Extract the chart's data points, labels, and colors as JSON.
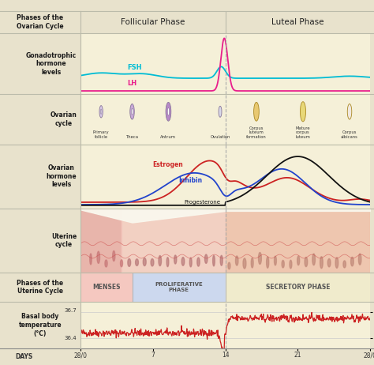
{
  "title_phases": "Phases of the\nOvarian Cycle",
  "follicular_phase_label": "Follicular Phase",
  "luteal_phase_label": "Luteal Phase",
  "left_bg": "#e8e2cc",
  "chart_bg": "#faf8ee",
  "follicular_bg": "#f5f0d8",
  "luteal_bg": "#f5f0d8",
  "header_bg": "#e8e2cc",
  "gonad_label": "Gonadotrophic\nhormone\nlevels",
  "ovarian_cycle_label": "Ovarian\ncycle",
  "ovarian_hormone_label": "Ovarian\nhormone\nlevels",
  "uterine_cycle_label": "Uterine\ncycle",
  "uterine_phases_label": "Phases of the\nUterine Cycle",
  "basal_body_label": "Basal body\ntemperature\n(°C)",
  "basal_high": "36.7",
  "basal_low": "36.4",
  "menses_label": "MENSES",
  "prolif_label": "PROLIFERATIVE\nPHASE",
  "secretory_label": "SECRETORY PHASE",
  "fsh_color": "#00bcd4",
  "lh_color": "#e91e8c",
  "estrogen_color": "#cc2222",
  "inhibin_color": "#2244cc",
  "progesterone_color": "#111111",
  "basal_color": "#cc2222",
  "menses_color": "#f5c8c0",
  "prolif_color": "#ccd8ee",
  "secretory_color": "#f0ebcc",
  "fsh_label": "FSH",
  "lh_label": "LH",
  "estrogen_label": "Estrogen",
  "inhibin_label": "Inhibin",
  "progesterone_label": "Progesterone",
  "ovarian_follicle_labels": [
    "Primary\nfollicle",
    "Theca",
    "Antrum",
    "Ovulation",
    "Corpus\nluteum\nformation",
    "Mature\ncorpus\nluteum",
    "Corpus\nalbicans"
  ],
  "ovarian_follicle_x": [
    2.0,
    5.0,
    8.5,
    13.5,
    17.0,
    21.5,
    26.0
  ],
  "follicle_colors": [
    "#d8c8e8",
    "#c8a8d8",
    "#b888c8",
    "#d8d8e8",
    "#e8c870",
    "#e8d878",
    "#f0e8e0"
  ],
  "follicle_sizes": [
    0.22,
    0.28,
    0.34,
    0.2,
    0.34,
    0.36,
    0.28
  ]
}
